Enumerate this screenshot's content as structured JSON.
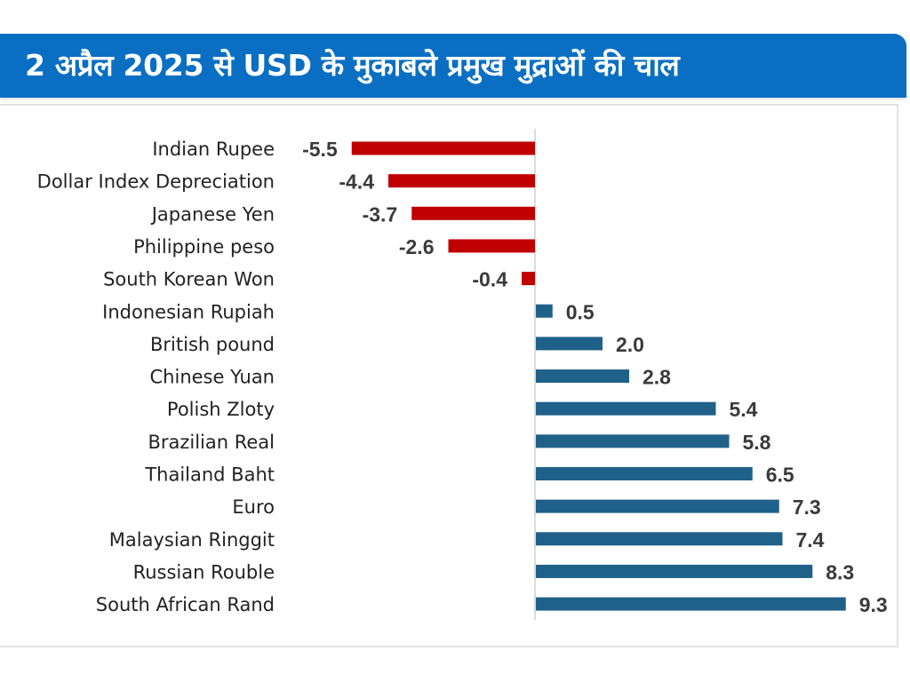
{
  "header": {
    "title": "2 अप्रैल 2025 से USD के मुकाबले प्रमुख मुद्राओं की चाल"
  },
  "colors": {
    "banner": "#0a6fc2",
    "negative_bar": "#c00000",
    "positive_bar": "#1f6188",
    "axis": "#d0d0d0"
  },
  "chart_data": {
    "type": "bar",
    "orientation": "horizontal",
    "title": "2 अप्रैल 2025 से USD के मुकाबले प्रमुख मुद्राओं की चाल",
    "xlabel": "",
    "ylabel": "",
    "categories": [
      "Indian Rupee",
      "Dollar Index Depreciation",
      "Japanese Yen",
      "Philippine peso",
      "South Korean Won",
      "Indonesian Rupiah",
      "British pound",
      "Chinese Yuan",
      "Polish Zloty",
      "Brazilian Real",
      "Thailand Baht",
      "Euro",
      "Malaysian Ringgit",
      "Russian Rouble",
      "South African Rand"
    ],
    "values": [
      -5.5,
      -4.4,
      -3.7,
      -2.6,
      -0.4,
      0.5,
      2.0,
      2.8,
      5.4,
      5.8,
      6.5,
      7.3,
      7.4,
      8.3,
      9.3
    ],
    "value_labels": [
      "-5.5",
      "-4.4",
      "-3.7",
      "-2.6",
      "-0.4",
      "0.5",
      "2.0",
      "2.8",
      "5.4",
      "5.8",
      "6.5",
      "7.3",
      "7.4",
      "8.3",
      "9.3"
    ],
    "xlim": [
      -5.5,
      9.3
    ],
    "grid": false,
    "legend": "none",
    "data_labels": true
  }
}
